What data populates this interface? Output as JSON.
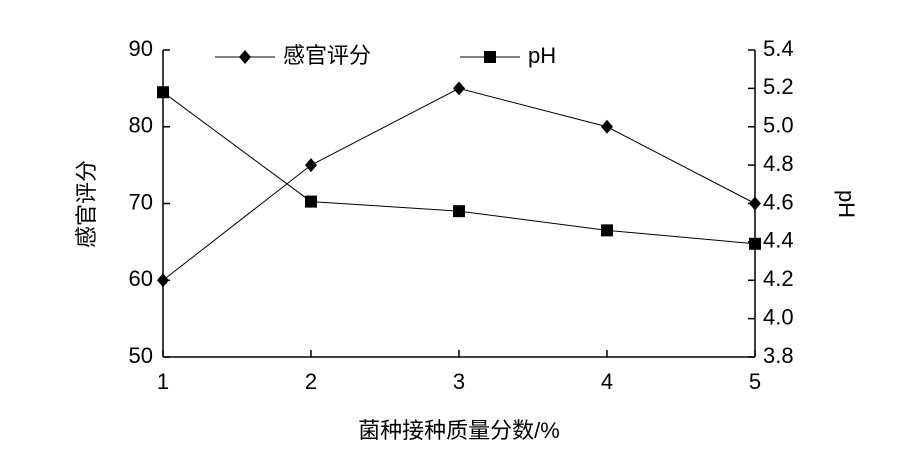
{
  "chart_data": {
    "type": "line",
    "x_label": "菌种接种质量分数/%",
    "y_label": "感官评分",
    "y2_label": "pH",
    "x": [
      1,
      2,
      3,
      4,
      5
    ],
    "xlim": [
      1,
      5
    ],
    "xticks": [
      1,
      2,
      3,
      4,
      5
    ],
    "ylim": [
      50,
      90
    ],
    "yticks": [
      50,
      60,
      70,
      80,
      90
    ],
    "y2lim": [
      3.8,
      5.4
    ],
    "y2ticks": [
      3.8,
      {
        "value": 4,
        "label": "4.0"
      },
      4.2,
      4.4,
      4.6,
      4.8,
      {
        "value": 5,
        "label": "5.0"
      },
      5.2,
      5.4
    ],
    "grid": false,
    "legend": "top",
    "series": [
      {
        "name": "感官评分",
        "color": "#000000",
        "marker": "diamond",
        "values": [
          60,
          75,
          85,
          80,
          70
        ]
      },
      {
        "name": "pH",
        "color": "#000000",
        "marker": "square",
        "axis": "y2",
        "values": [
          5.18,
          4.61,
          4.56,
          4.46,
          4.39
        ]
      }
    ]
  }
}
